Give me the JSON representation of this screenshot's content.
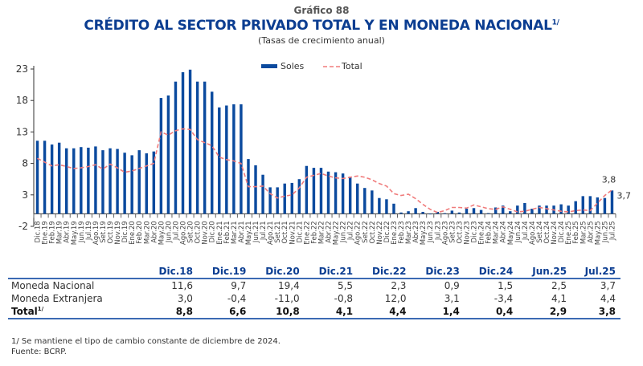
{
  "header": {
    "number": "Gráfico 88",
    "title": "CRÉDITO AL SECTOR PRIVADO TOTAL Y EN MONEDA NACIONAL",
    "title_sup": "1/",
    "subtitle": "(Tasas de crecimiento anual)"
  },
  "chart_data": {
    "type": "bar",
    "title": "CRÉDITO AL SECTOR PRIVADO TOTAL Y EN MONEDA NACIONAL",
    "subtitle": "(Tasas de crecimiento anual)",
    "xlabel": "",
    "ylabel": "",
    "ylim": [
      -2,
      23
    ],
    "yticks": [
      -2,
      3,
      8,
      13,
      18,
      23
    ],
    "grid": false,
    "legend_position": "top-center",
    "colors": {
      "soles": "#0b4a9e",
      "total": "#f07b7b"
    },
    "categories": [
      "Dic.18",
      "Ene.19",
      "Feb.19",
      "Mar.19",
      "Abr.19",
      "May.19",
      "Jun.19",
      "Jul.19",
      "Ago.19",
      "Set.19",
      "Oct.19",
      "Nov.19",
      "Dic.19",
      "Ene.20",
      "Feb.20",
      "Mar.20",
      "Abr.20",
      "May.20",
      "Jun.20",
      "Jul.20",
      "Ago.20",
      "Set.20",
      "Oct.20",
      "Nov.20",
      "Dic.20",
      "Ene.21",
      "Feb.21",
      "Mar.21",
      "Abr.21",
      "May.21",
      "Jun.21",
      "Jul.21",
      "Ago.21",
      "Set.21",
      "Oct.21",
      "Nov.21",
      "Dic.21",
      "Ene.22",
      "Feb.22",
      "Mar.22",
      "Abr.22",
      "May.22",
      "Jun.22",
      "Jul.22",
      "Ago.22",
      "Set.22",
      "Oct.22",
      "Nov.22",
      "Dic.22",
      "Ene.23",
      "Feb.23",
      "Mar.23",
      "Abr.23",
      "May.23",
      "Jun.23",
      "Jul.23",
      "Ago.23",
      "Set.23",
      "Oct.23",
      "Nov.23",
      "Dic.23",
      "Ene.24",
      "Feb.24",
      "Mar.24",
      "Abr.24",
      "May.24",
      "Jun.24",
      "Jul.24",
      "Ago.24",
      "Set.24",
      "Oct.24",
      "Nov.24",
      "Dic.24",
      "Ene.25",
      "Feb.25",
      "Mar.25",
      "Abr.25",
      "May.25",
      "Jun.25",
      "Jul.25"
    ],
    "series": [
      {
        "name": "Soles",
        "type": "bar",
        "values": [
          11.6,
          11.6,
          11.0,
          11.3,
          10.4,
          10.4,
          10.6,
          10.5,
          10.7,
          10.1,
          10.4,
          10.3,
          9.7,
          9.3,
          10.1,
          9.6,
          9.9,
          18.4,
          18.8,
          21.0,
          22.5,
          22.9,
          21.0,
          21.0,
          19.4,
          16.9,
          17.2,
          17.4,
          17.4,
          8.7,
          7.7,
          6.2,
          4.2,
          4.2,
          4.8,
          4.9,
          5.5,
          7.6,
          7.3,
          7.3,
          6.7,
          6.6,
          6.4,
          5.9,
          4.8,
          4.1,
          3.7,
          2.5,
          2.3,
          1.6,
          0.2,
          0.4,
          0.9,
          0.3,
          -0.1,
          0.3,
          0.1,
          0.5,
          0.2,
          0.8,
          0.9,
          0.6,
          0.1,
          1.0,
          1.3,
          0.4,
          1.3,
          1.7,
          0.8,
          1.3,
          1.3,
          1.3,
          1.5,
          1.3,
          2.0,
          2.8,
          2.8,
          2.6,
          2.5,
          3.7
        ]
      },
      {
        "name": "Total",
        "type": "line",
        "style": "dashed",
        "values": [
          8.8,
          8.2,
          7.6,
          7.8,
          7.5,
          7.2,
          7.3,
          7.5,
          7.8,
          7.1,
          7.9,
          7.3,
          6.6,
          6.8,
          7.2,
          7.6,
          8.0,
          13.0,
          12.5,
          13.2,
          13.5,
          13.4,
          11.8,
          11.3,
          10.8,
          9.0,
          8.6,
          8.4,
          8.0,
          4.3,
          4.3,
          4.4,
          3.2,
          2.5,
          2.8,
          3.0,
          4.1,
          5.8,
          6.1,
          6.4,
          6.0,
          5.7,
          5.6,
          5.8,
          6.0,
          5.8,
          5.4,
          4.8,
          4.4,
          3.2,
          2.9,
          3.1,
          2.4,
          1.5,
          0.7,
          0.2,
          0.5,
          1.0,
          1.0,
          0.9,
          1.4,
          1.1,
          0.8,
          0.7,
          1.1,
          0.7,
          0.3,
          0.4,
          0.7,
          1.0,
          0.8,
          0.6,
          0.4,
          0.3,
          0.5,
          0.6,
          0.5,
          1.7,
          2.9,
          3.8
        ]
      }
    ],
    "annotations": [
      {
        "series": "Total",
        "category": "Jul.25",
        "text": "3,8"
      },
      {
        "series": "Soles",
        "category": "Jul.25",
        "text": "3,7"
      }
    ]
  },
  "table": {
    "columns": [
      "",
      "Dic.18",
      "Dic.19",
      "Dic.20",
      "Dic.21",
      "Dic.22",
      "Dic.23",
      "Dic.24",
      "Jun.25",
      "Jul.25"
    ],
    "rows": [
      {
        "label": "Moneda Nacional",
        "values": [
          "11,6",
          "9,7",
          "19,4",
          "5,5",
          "2,3",
          "0,9",
          "1,5",
          "2,5",
          "3,7"
        ]
      },
      {
        "label": "Moneda Extranjera",
        "values": [
          "3,0",
          "-0,4",
          "-11,0",
          "-0,8",
          "12,0",
          "3,1",
          "-3,4",
          "4,1",
          "4,4"
        ]
      },
      {
        "label": "Total",
        "label_sup": "1/",
        "values": [
          "8,8",
          "6,6",
          "10,8",
          "4,1",
          "4,4",
          "1,4",
          "0,4",
          "2,9",
          "3,8"
        ]
      }
    ]
  },
  "footnotes": {
    "note": "1/  Se mantiene el tipo de cambio constante de diciembre de 2024.",
    "source": "Fuente: BCRP."
  }
}
